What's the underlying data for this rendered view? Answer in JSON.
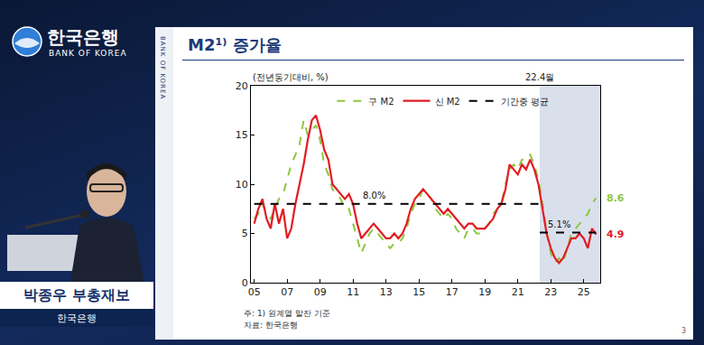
{
  "page": {
    "logo_title": "한국은행",
    "logo_subtitle": "BANK OF KOREA",
    "side_label": "BANK OF KOREA",
    "speaker_name": "박종우 부총재보",
    "speaker_org": "한국은행",
    "page_number": "3"
  },
  "chart_data": {
    "type": "line",
    "title": "M2¹⁾ 증가율",
    "ylabel": "(전년동기대비, %)",
    "x": [
      2005,
      2005.25,
      2005.5,
      2005.75,
      2006,
      2006.25,
      2006.5,
      2006.75,
      2007,
      2007.25,
      2007.5,
      2007.75,
      2008,
      2008.25,
      2008.5,
      2008.75,
      2009,
      2009.25,
      2009.5,
      2009.75,
      2010,
      2010.25,
      2010.5,
      2010.75,
      2011,
      2011.25,
      2011.5,
      2011.75,
      2012,
      2012.25,
      2012.5,
      2012.75,
      2013,
      2013.25,
      2013.5,
      2013.75,
      2014,
      2014.25,
      2014.5,
      2014.75,
      2015,
      2015.25,
      2015.5,
      2015.75,
      2016,
      2016.25,
      2016.5,
      2016.75,
      2017,
      2017.25,
      2017.5,
      2017.75,
      2018,
      2018.25,
      2018.5,
      2018.75,
      2019,
      2019.25,
      2019.5,
      2019.75,
      2020,
      2020.25,
      2020.5,
      2020.75,
      2021,
      2021.25,
      2021.5,
      2021.75,
      2022,
      2022.25,
      2022.5,
      2022.75,
      2023,
      2023.25,
      2023.5,
      2023.75,
      2024,
      2024.25,
      2024.5,
      2024.75,
      2025,
      2025.25,
      2025.5,
      2025.75
    ],
    "series": [
      {
        "name": "구 M2",
        "color": "#8dc63f",
        "line_style": "dashed",
        "end_label": "8.6",
        "values": [
          6.5,
          7.0,
          8.0,
          7.0,
          6.5,
          7.5,
          8.5,
          9.0,
          10.5,
          12.0,
          13.0,
          14.0,
          16.5,
          15.0,
          15.5,
          16.0,
          14.5,
          12.0,
          11.0,
          9.5,
          9.0,
          8.5,
          7.5,
          7.5,
          6.0,
          4.5,
          3.0,
          4.0,
          5.0,
          5.5,
          5.0,
          4.5,
          4.0,
          3.5,
          4.0,
          4.0,
          4.5,
          5.5,
          7.0,
          8.0,
          8.5,
          9.5,
          9.0,
          8.5,
          7.5,
          7.0,
          6.5,
          7.0,
          6.5,
          5.5,
          5.0,
          4.5,
          5.5,
          5.5,
          5.0,
          5.0,
          5.5,
          6.0,
          7.0,
          7.5,
          8.0,
          10.0,
          11.5,
          12.0,
          11.5,
          12.5,
          12.5,
          13.0,
          12.0,
          10.5,
          8.0,
          5.0,
          3.0,
          2.0,
          2.5,
          2.0,
          3.5,
          5.0,
          5.5,
          6.0,
          6.5,
          7.0,
          8.0,
          8.6
        ]
      },
      {
        "name": "신 M2",
        "color": "#e31b23",
        "line_style": "solid",
        "end_label": "4.9",
        "values": [
          6.0,
          7.5,
          8.5,
          6.5,
          5.5,
          8.0,
          6.0,
          7.5,
          4.5,
          5.5,
          8.0,
          10.0,
          12.0,
          14.5,
          16.5,
          17.0,
          15.5,
          13.5,
          12.5,
          10.0,
          9.5,
          9.0,
          8.5,
          9.0,
          8.0,
          6.0,
          4.5,
          5.0,
          5.5,
          6.0,
          5.5,
          5.0,
          4.5,
          4.5,
          5.0,
          4.5,
          5.0,
          6.0,
          7.5,
          8.5,
          9.0,
          9.5,
          9.0,
          8.5,
          8.0,
          7.5,
          7.0,
          7.5,
          7.0,
          6.5,
          6.0,
          5.5,
          6.0,
          6.0,
          5.5,
          5.5,
          5.5,
          6.0,
          6.5,
          7.5,
          8.0,
          9.5,
          12.0,
          11.5,
          11.0,
          12.0,
          11.5,
          12.5,
          11.5,
          10.0,
          7.5,
          5.0,
          3.5,
          2.5,
          2.0,
          2.5,
          3.5,
          4.5,
          4.5,
          5.0,
          4.5,
          3.5,
          5.5,
          4.9
        ]
      }
    ],
    "averages": {
      "name": "기간중 평균",
      "color": "#000000",
      "line_style": "dashed",
      "segments": [
        {
          "start": 2005,
          "end": 2022.33,
          "value": 8.0,
          "label": "8.0%"
        },
        {
          "start": 2022.33,
          "end": 2025.75,
          "value": 5.1,
          "label": "5.1%"
        }
      ]
    },
    "shade": {
      "start": 2022.33,
      "label": "22.4월"
    },
    "xlim": [
      2004.8,
      2026
    ],
    "xticks": [
      {
        "value": 2005,
        "label": "05"
      },
      {
        "value": 2007,
        "label": "07"
      },
      {
        "value": 2009,
        "label": "09"
      },
      {
        "value": 2011,
        "label": "11"
      },
      {
        "value": 2013,
        "label": "13"
      },
      {
        "value": 2015,
        "label": "15"
      },
      {
        "value": 2017,
        "label": "17"
      },
      {
        "value": 2019,
        "label": "19"
      },
      {
        "value": 2021,
        "label": "21"
      },
      {
        "value": 2023,
        "label": "23"
      },
      {
        "value": 2025,
        "label": "25"
      }
    ],
    "ylim": [
      0,
      20
    ],
    "yticks": [
      0,
      5,
      10,
      15,
      20
    ],
    "grid": false,
    "legend": "upper center",
    "notes": [
      "주: 1) 원계열 말잔 기준",
      "자료: 한국은행"
    ]
  }
}
